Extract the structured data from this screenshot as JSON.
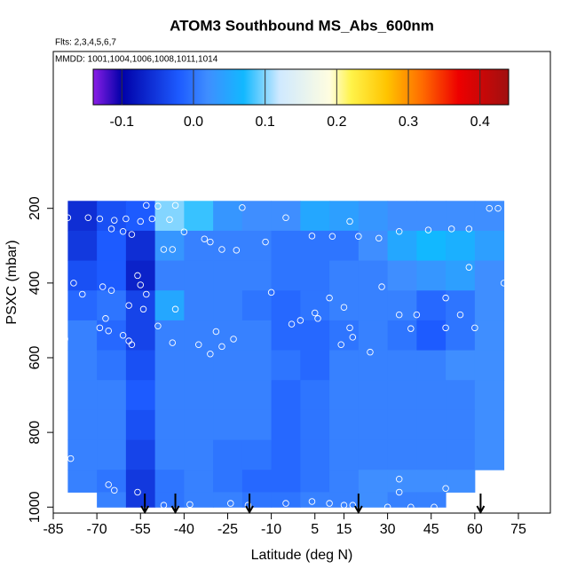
{
  "chart_data": {
    "type": "heatmap",
    "title": "ATOM3 Southbound MS_Abs_600nm",
    "subtitle": "Flts: 2,3,4,5,6,7",
    "annotation": "MMDD: 1001,1004,1006,1008,1011,1014",
    "x_label": "Latitude (deg N)",
    "y_label": "PSXC (mbar)",
    "xlim": [
      -85,
      86
    ],
    "xticks": [
      -85,
      -70,
      -55,
      -40,
      -25,
      -10,
      5,
      15,
      30,
      45,
      60,
      75
    ],
    "ylim": [
      1016,
      -220
    ],
    "yticks": [
      200,
      400,
      600,
      800,
      1000
    ],
    "lat_edges": [
      -80,
      -70,
      -60,
      -50,
      -40,
      -30,
      -20,
      -10,
      0,
      10,
      20,
      30,
      40,
      50,
      60,
      70
    ],
    "pressure_edges": [
      180,
      260,
      340,
      420,
      500,
      580,
      660,
      740,
      820,
      900,
      960,
      1000
    ],
    "values": [
      [
        -0.06,
        -0.03,
        -0.02,
        0.1,
        0.08,
        0.03,
        0.02,
        0.02,
        0.05,
        0.04,
        0.03,
        0.02,
        0.02,
        0.02,
        0.02
      ],
      [
        -0.05,
        -0.02,
        -0.06,
        0.03,
        0.01,
        0.01,
        0.01,
        0.0,
        0.0,
        0.0,
        0.02,
        0.05,
        0.07,
        0.06,
        0.04
      ],
      [
        -0.03,
        -0.02,
        -0.07,
        0.01,
        0.01,
        0.01,
        0.01,
        0.0,
        0.0,
        0.01,
        0.01,
        0.02,
        0.03,
        0.04,
        0.02
      ],
      [
        -0.01,
        0.0,
        -0.04,
        0.05,
        0.01,
        0.01,
        0.0,
        -0.01,
        0.0,
        0.01,
        0.01,
        0.01,
        -0.01,
        0.0,
        0.02
      ],
      [
        0.01,
        -0.01,
        -0.04,
        0.01,
        0.01,
        0.01,
        0.01,
        -0.01,
        -0.01,
        0.0,
        0.01,
        0.0,
        -0.02,
        0.0,
        0.02
      ],
      [
        0.01,
        0.0,
        -0.03,
        0.01,
        0.01,
        0.01,
        0.01,
        0.0,
        -0.01,
        0.01,
        0.01,
        0.01,
        0.01,
        0.02,
        0.02
      ],
      [
        0.01,
        0.01,
        -0.02,
        0.01,
        0.01,
        0.01,
        0.01,
        -0.01,
        0.0,
        0.01,
        0.01,
        0.01,
        0.01,
        0.01,
        0.02
      ],
      [
        0.01,
        0.01,
        -0.03,
        0.01,
        0.01,
        0.01,
        0.01,
        -0.01,
        0.0,
        0.01,
        0.01,
        0.01,
        0.01,
        0.01,
        0.02
      ],
      [
        0.01,
        0.01,
        -0.04,
        0.01,
        0.01,
        0.0,
        0.0,
        -0.01,
        0.0,
        0.01,
        0.01,
        0.01,
        0.01,
        0.01,
        0.02
      ],
      [
        0.01,
        0.0,
        -0.05,
        0.0,
        0.01,
        0.0,
        -0.01,
        -0.01,
        0.0,
        0.01,
        0.02,
        0.02,
        0.02,
        0.02,
        null
      ],
      [
        null,
        0.01,
        -0.05,
        0.0,
        0.01,
        0.01,
        0.0,
        0.0,
        0.01,
        0.01,
        0.02,
        0.01,
        0.01,
        null,
        null
      ]
    ],
    "colorbar": {
      "lim": [
        -0.14,
        0.44
      ],
      "ticks": [
        {
          "value": -0.1,
          "label": "-0.1"
        },
        {
          "value": 0,
          "label": "0.0"
        },
        0.1,
        0.2,
        0.3,
        0.4
      ],
      "stops": [
        [
          -0.14,
          "#8b1ee6"
        ],
        [
          -0.1,
          "#0000a8"
        ],
        [
          -0.02,
          "#1d5bff"
        ],
        [
          0.02,
          "#3f8eff"
        ],
        [
          0.07,
          "#12b8ff"
        ],
        [
          0.12,
          "#cfe9ff"
        ],
        [
          0.19,
          "#fffde0"
        ],
        [
          0.22,
          "#fff34a"
        ],
        [
          0.27,
          "#ffc400"
        ],
        [
          0.32,
          "#ff6a00"
        ],
        [
          0.37,
          "#ee0000"
        ],
        [
          0.44,
          "#a01010"
        ]
      ]
    },
    "points": {
      "color": "#ffffff",
      "x": [
        -80,
        -73,
        -69,
        -64,
        -60,
        -55,
        -51,
        -45,
        -53,
        -49,
        -43,
        -20,
        -5,
        17,
        -65,
        -61,
        -58,
        -40,
        -33,
        -31,
        -47,
        -44,
        -27,
        -22,
        -12,
        4,
        11,
        20,
        27,
        34,
        44,
        52,
        58,
        65,
        68,
        58,
        70,
        -82,
        -78,
        -75,
        -68,
        -65,
        -56,
        -55,
        -53,
        -54,
        -59,
        -43,
        -67,
        -69,
        -66,
        -61,
        -59,
        -58,
        -81,
        -49,
        -44,
        -35,
        -29,
        -27,
        -23,
        -31,
        -3,
        -10,
        0,
        5,
        6,
        10,
        15,
        17,
        18,
        14,
        28,
        34,
        40,
        50,
        55,
        38,
        50,
        60,
        24,
        34,
        34,
        50,
        72,
        -79,
        -66,
        -64,
        -47,
        -38,
        -24,
        -18,
        -5,
        10,
        15,
        18,
        30,
        38,
        46,
        4,
        -56
      ],
      "y": [
        225,
        225,
        228,
        232,
        228,
        235,
        228,
        230,
        192,
        194,
        192,
        198,
        225,
        235,
        255,
        262,
        270,
        263,
        282,
        290,
        310,
        310,
        310,
        312,
        290,
        274,
        275,
        275,
        280,
        262,
        258,
        255,
        255,
        200,
        200,
        358,
        400,
        380,
        400,
        430,
        410,
        420,
        380,
        405,
        430,
        470,
        460,
        470,
        495,
        520,
        528,
        540,
        555,
        565,
        550,
        515,
        560,
        565,
        530,
        570,
        550,
        590,
        510,
        425,
        500,
        480,
        495,
        440,
        465,
        520,
        545,
        565,
        410,
        485,
        485,
        440,
        485,
        522,
        520,
        520,
        585,
        925,
        960,
        950,
        860,
        870,
        940,
        955,
        995,
        993,
        990,
        995,
        990,
        990,
        995,
        995,
        1000,
        1000,
        1000,
        985,
        960
      ]
    },
    "arrows": [
      -53.5,
      -43,
      -17.5,
      20,
      62
    ]
  }
}
